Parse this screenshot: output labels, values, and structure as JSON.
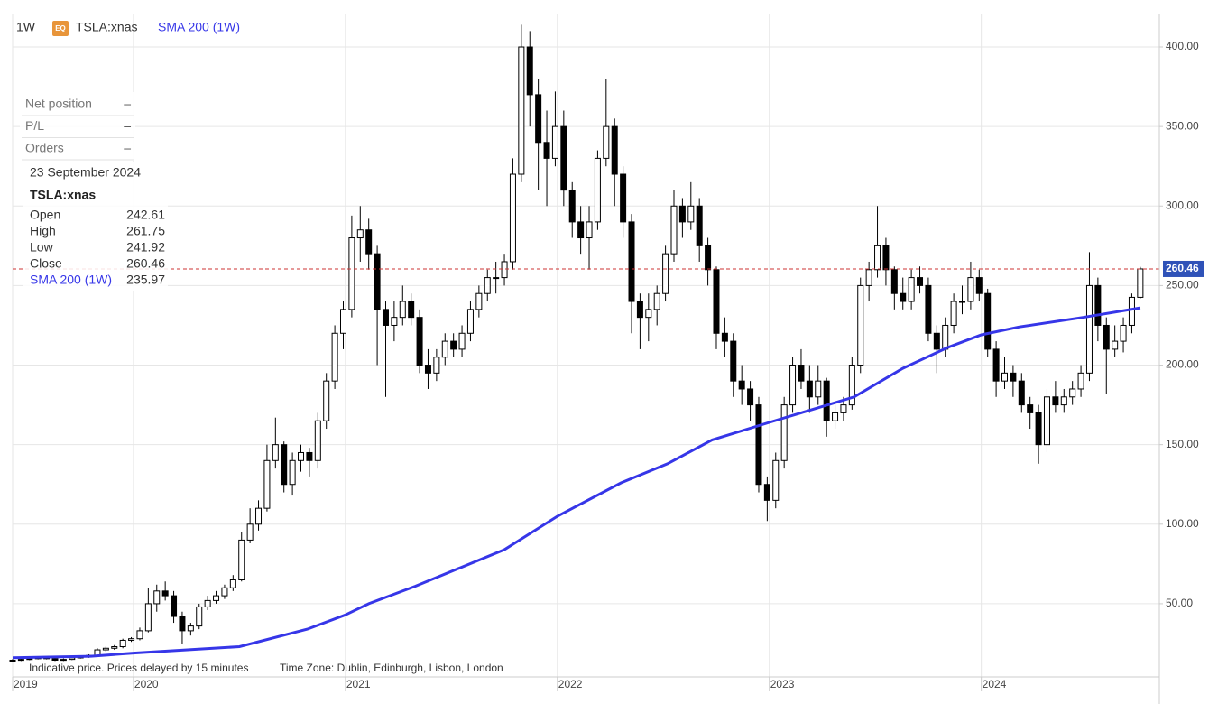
{
  "chart_data": {
    "type": "candlestick",
    "interval": "1W",
    "badge": "EQ",
    "symbol": "TSLA:xnas",
    "up_color": "#ffffff",
    "down_color": "#000000",
    "outline_color": "#000000",
    "last_line_color": "#cc3333",
    "grid": true,
    "xlim": [
      2019.43,
      2024.84
    ],
    "xticks": [
      {
        "value": 2019.43,
        "label": "2019"
      },
      2020,
      2021,
      2022,
      2023,
      2024
    ],
    "ylim": [
      4,
      421
    ],
    "yticks": [
      {
        "value": 50,
        "label": "50.00"
      },
      {
        "value": 100,
        "label": "100.00"
      },
      {
        "value": 150,
        "label": "150.00"
      },
      {
        "value": 200,
        "label": "200.00"
      },
      {
        "value": 250,
        "label": "250.00"
      },
      {
        "value": 300,
        "label": "300.00"
      },
      {
        "value": 350,
        "label": "350.00"
      },
      {
        "value": 400,
        "label": "400.00"
      }
    ],
    "x": [
      2019.43,
      2019.47,
      2019.51,
      2019.55,
      2019.59,
      2019.63,
      2019.67,
      2019.71,
      2019.75,
      2019.79,
      2019.83,
      2019.87,
      2019.91,
      2019.95,
      2019.99,
      2020.03,
      2020.07,
      2020.11,
      2020.15,
      2020.19,
      2020.23,
      2020.27,
      2020.31,
      2020.35,
      2020.39,
      2020.43,
      2020.47,
      2020.51,
      2020.55,
      2020.59,
      2020.63,
      2020.67,
      2020.71,
      2020.75,
      2020.79,
      2020.83,
      2020.87,
      2020.91,
      2020.95,
      2020.99,
      2021.03,
      2021.07,
      2021.11,
      2021.15,
      2021.19,
      2021.23,
      2021.27,
      2021.31,
      2021.35,
      2021.39,
      2021.43,
      2021.47,
      2021.51,
      2021.55,
      2021.59,
      2021.63,
      2021.67,
      2021.71,
      2021.75,
      2021.79,
      2021.83,
      2021.87,
      2021.91,
      2021.95,
      2021.99,
      2022.03,
      2022.07,
      2022.11,
      2022.15,
      2022.19,
      2022.23,
      2022.27,
      2022.31,
      2022.35,
      2022.39,
      2022.43,
      2022.47,
      2022.51,
      2022.55,
      2022.59,
      2022.63,
      2022.67,
      2022.71,
      2022.75,
      2022.79,
      2022.83,
      2022.87,
      2022.91,
      2022.95,
      2022.99,
      2023.03,
      2023.07,
      2023.11,
      2023.15,
      2023.19,
      2023.23,
      2023.27,
      2023.31,
      2023.35,
      2023.39,
      2023.43,
      2023.47,
      2023.51,
      2023.55,
      2023.59,
      2023.63,
      2023.67,
      2023.71,
      2023.75,
      2023.79,
      2023.83,
      2023.87,
      2023.91,
      2023.95,
      2023.99,
      2024.03,
      2024.07,
      2024.11,
      2024.15,
      2024.19,
      2024.23,
      2024.27,
      2024.31,
      2024.35,
      2024.39,
      2024.43,
      2024.47,
      2024.51,
      2024.55,
      2024.59,
      2024.63,
      2024.67,
      2024.71,
      2024.75
    ],
    "ohlc": [
      [
        14,
        15.2,
        13.6,
        14.5
      ],
      [
        14.5,
        15.6,
        14,
        15
      ],
      [
        15,
        16.2,
        14.5,
        15.5
      ],
      [
        15.5,
        16.7,
        15,
        16
      ],
      [
        16,
        16.6,
        15,
        15.5
      ],
      [
        15.5,
        16,
        14,
        14.5
      ],
      [
        14.5,
        15.6,
        14,
        15
      ],
      [
        15,
        16.6,
        14.6,
        16
      ],
      [
        16,
        17.2,
        15.5,
        16.5
      ],
      [
        16.5,
        18.2,
        16,
        17.5
      ],
      [
        17.5,
        22,
        17,
        21
      ],
      [
        21,
        23,
        20,
        22
      ],
      [
        22,
        24,
        21,
        23
      ],
      [
        23,
        28,
        22,
        27
      ],
      [
        27,
        29,
        26,
        28
      ],
      [
        28,
        35,
        27,
        33
      ],
      [
        33,
        60,
        32,
        50
      ],
      [
        50,
        62,
        45,
        58
      ],
      [
        58,
        64,
        52,
        55
      ],
      [
        55,
        58,
        38,
        42
      ],
      [
        42,
        45,
        25,
        33
      ],
      [
        33,
        38,
        30,
        36
      ],
      [
        36,
        50,
        34,
        48
      ],
      [
        48,
        55,
        46,
        52
      ],
      [
        52,
        58,
        50,
        55
      ],
      [
        55,
        62,
        53,
        60
      ],
      [
        60,
        68,
        58,
        65
      ],
      [
        65,
        95,
        64,
        90
      ],
      [
        90,
        110,
        88,
        100
      ],
      [
        100,
        115,
        96,
        110
      ],
      [
        110,
        150,
        108,
        140
      ],
      [
        140,
        167,
        135,
        150
      ],
      [
        150,
        152,
        120,
        125
      ],
      [
        125,
        145,
        118,
        140
      ],
      [
        140,
        150,
        133,
        145
      ],
      [
        145,
        148,
        130,
        140
      ],
      [
        140,
        170,
        135,
        165
      ],
      [
        165,
        195,
        160,
        190
      ],
      [
        190,
        225,
        185,
        220
      ],
      [
        220,
        240,
        210,
        235
      ],
      [
        235,
        294,
        230,
        280
      ],
      [
        280,
        300,
        265,
        285
      ],
      [
        285,
        292,
        260,
        270
      ],
      [
        270,
        275,
        200,
        235
      ],
      [
        235,
        240,
        180,
        225
      ],
      [
        225,
        240,
        215,
        230
      ],
      [
        230,
        250,
        225,
        240
      ],
      [
        240,
        245,
        225,
        230
      ],
      [
        230,
        235,
        195,
        200
      ],
      [
        200,
        210,
        185,
        195
      ],
      [
        195,
        210,
        190,
        205
      ],
      [
        205,
        220,
        200,
        215
      ],
      [
        215,
        220,
        205,
        210
      ],
      [
        210,
        225,
        205,
        220
      ],
      [
        220,
        240,
        215,
        235
      ],
      [
        235,
        250,
        230,
        245
      ],
      [
        245,
        260,
        240,
        255
      ],
      [
        255,
        265,
        245,
        255
      ],
      [
        255,
        270,
        250,
        265
      ],
      [
        265,
        330,
        260,
        320
      ],
      [
        320,
        414,
        315,
        400
      ],
      [
        400,
        410,
        350,
        370
      ],
      [
        370,
        380,
        310,
        340
      ],
      [
        340,
        360,
        300,
        330
      ],
      [
        330,
        372,
        325,
        350
      ],
      [
        350,
        360,
        300,
        310
      ],
      [
        310,
        315,
        280,
        290
      ],
      [
        290,
        300,
        270,
        280
      ],
      [
        280,
        300,
        260,
        290
      ],
      [
        290,
        335,
        285,
        330
      ],
      [
        330,
        380,
        325,
        350
      ],
      [
        350,
        355,
        300,
        320
      ],
      [
        320,
        325,
        280,
        290
      ],
      [
        290,
        295,
        220,
        240
      ],
      [
        240,
        245,
        210,
        230
      ],
      [
        230,
        245,
        215,
        235
      ],
      [
        235,
        250,
        225,
        245
      ],
      [
        245,
        275,
        240,
        270
      ],
      [
        270,
        310,
        265,
        300
      ],
      [
        300,
        305,
        280,
        290
      ],
      [
        290,
        315,
        285,
        300
      ],
      [
        300,
        305,
        265,
        275
      ],
      [
        275,
        280,
        250,
        260
      ],
      [
        260,
        262,
        210,
        220
      ],
      [
        220,
        230,
        205,
        215
      ],
      [
        215,
        220,
        180,
        190
      ],
      [
        190,
        200,
        175,
        185
      ],
      [
        185,
        190,
        165,
        175
      ],
      [
        175,
        180,
        120,
        125
      ],
      [
        125,
        130,
        102,
        115
      ],
      [
        115,
        145,
        110,
        140
      ],
      [
        140,
        180,
        135,
        175
      ],
      [
        175,
        205,
        170,
        200
      ],
      [
        200,
        210,
        185,
        190
      ],
      [
        190,
        200,
        170,
        180
      ],
      [
        180,
        200,
        175,
        190
      ],
      [
        190,
        192,
        155,
        165
      ],
      [
        165,
        175,
        160,
        170
      ],
      [
        170,
        180,
        165,
        175
      ],
      [
        175,
        205,
        172,
        200
      ],
      [
        200,
        255,
        195,
        250
      ],
      [
        250,
        265,
        240,
        260
      ],
      [
        260,
        300,
        255,
        275
      ],
      [
        275,
        280,
        250,
        260
      ],
      [
        260,
        262,
        235,
        245
      ],
      [
        245,
        255,
        235,
        240
      ],
      [
        240,
        260,
        235,
        255
      ],
      [
        255,
        262,
        245,
        250
      ],
      [
        250,
        255,
        215,
        220
      ],
      [
        220,
        225,
        195,
        210
      ],
      [
        210,
        230,
        205,
        225
      ],
      [
        225,
        245,
        220,
        240
      ],
      [
        240,
        250,
        232,
        240
      ],
      [
        240,
        265,
        235,
        255
      ],
      [
        255,
        260,
        240,
        245
      ],
      [
        245,
        248,
        205,
        210
      ],
      [
        210,
        215,
        180,
        190
      ],
      [
        190,
        205,
        185,
        195
      ],
      [
        195,
        200,
        180,
        190
      ],
      [
        190,
        195,
        170,
        175
      ],
      [
        175,
        180,
        160,
        170
      ],
      [
        170,
        175,
        138,
        150
      ],
      [
        150,
        185,
        145,
        180
      ],
      [
        180,
        190,
        170,
        175
      ],
      [
        175,
        185,
        170,
        180
      ],
      [
        180,
        190,
        175,
        185
      ],
      [
        185,
        200,
        180,
        195
      ],
      [
        195,
        271,
        190,
        250
      ],
      [
        250,
        255,
        215,
        225
      ],
      [
        225,
        230,
        182,
        210
      ],
      [
        210,
        225,
        205,
        215
      ],
      [
        215,
        230,
        208,
        225
      ],
      [
        225,
        245,
        220,
        242.61
      ],
      [
        242.61,
        261.75,
        241.92,
        260.46
      ]
    ],
    "sma": {
      "name": "SMA 200 (1W)",
      "color": "#3636e8",
      "x": [
        2019.43,
        2019.8,
        2020.0,
        2020.5,
        2020.82,
        2021.0,
        2021.11,
        2021.33,
        2021.75,
        2022.0,
        2022.3,
        2022.52,
        2022.73,
        2023.0,
        2023.2,
        2023.4,
        2023.63,
        2023.84,
        2024.0,
        2024.18,
        2024.48,
        2024.75
      ],
      "values": [
        16,
        17,
        19,
        23,
        34,
        43,
        50,
        61,
        84,
        105,
        126,
        138,
        153,
        164,
        172,
        180,
        198,
        211,
        219,
        224,
        230,
        235.97
      ]
    },
    "panel": {
      "rows": [
        {
          "label": "Net position",
          "value": "–"
        },
        {
          "label": "P/L",
          "value": "–"
        },
        {
          "label": "Orders",
          "value": "–"
        }
      ],
      "date": "23 September 2024",
      "fields": [
        "Open",
        "High",
        "Low",
        "Close"
      ]
    },
    "footer": [
      "Indicative price. Prices delayed by 15 minutes",
      "Time Zone: Dublin, Edinburgh, Lisbon, London"
    ]
  }
}
